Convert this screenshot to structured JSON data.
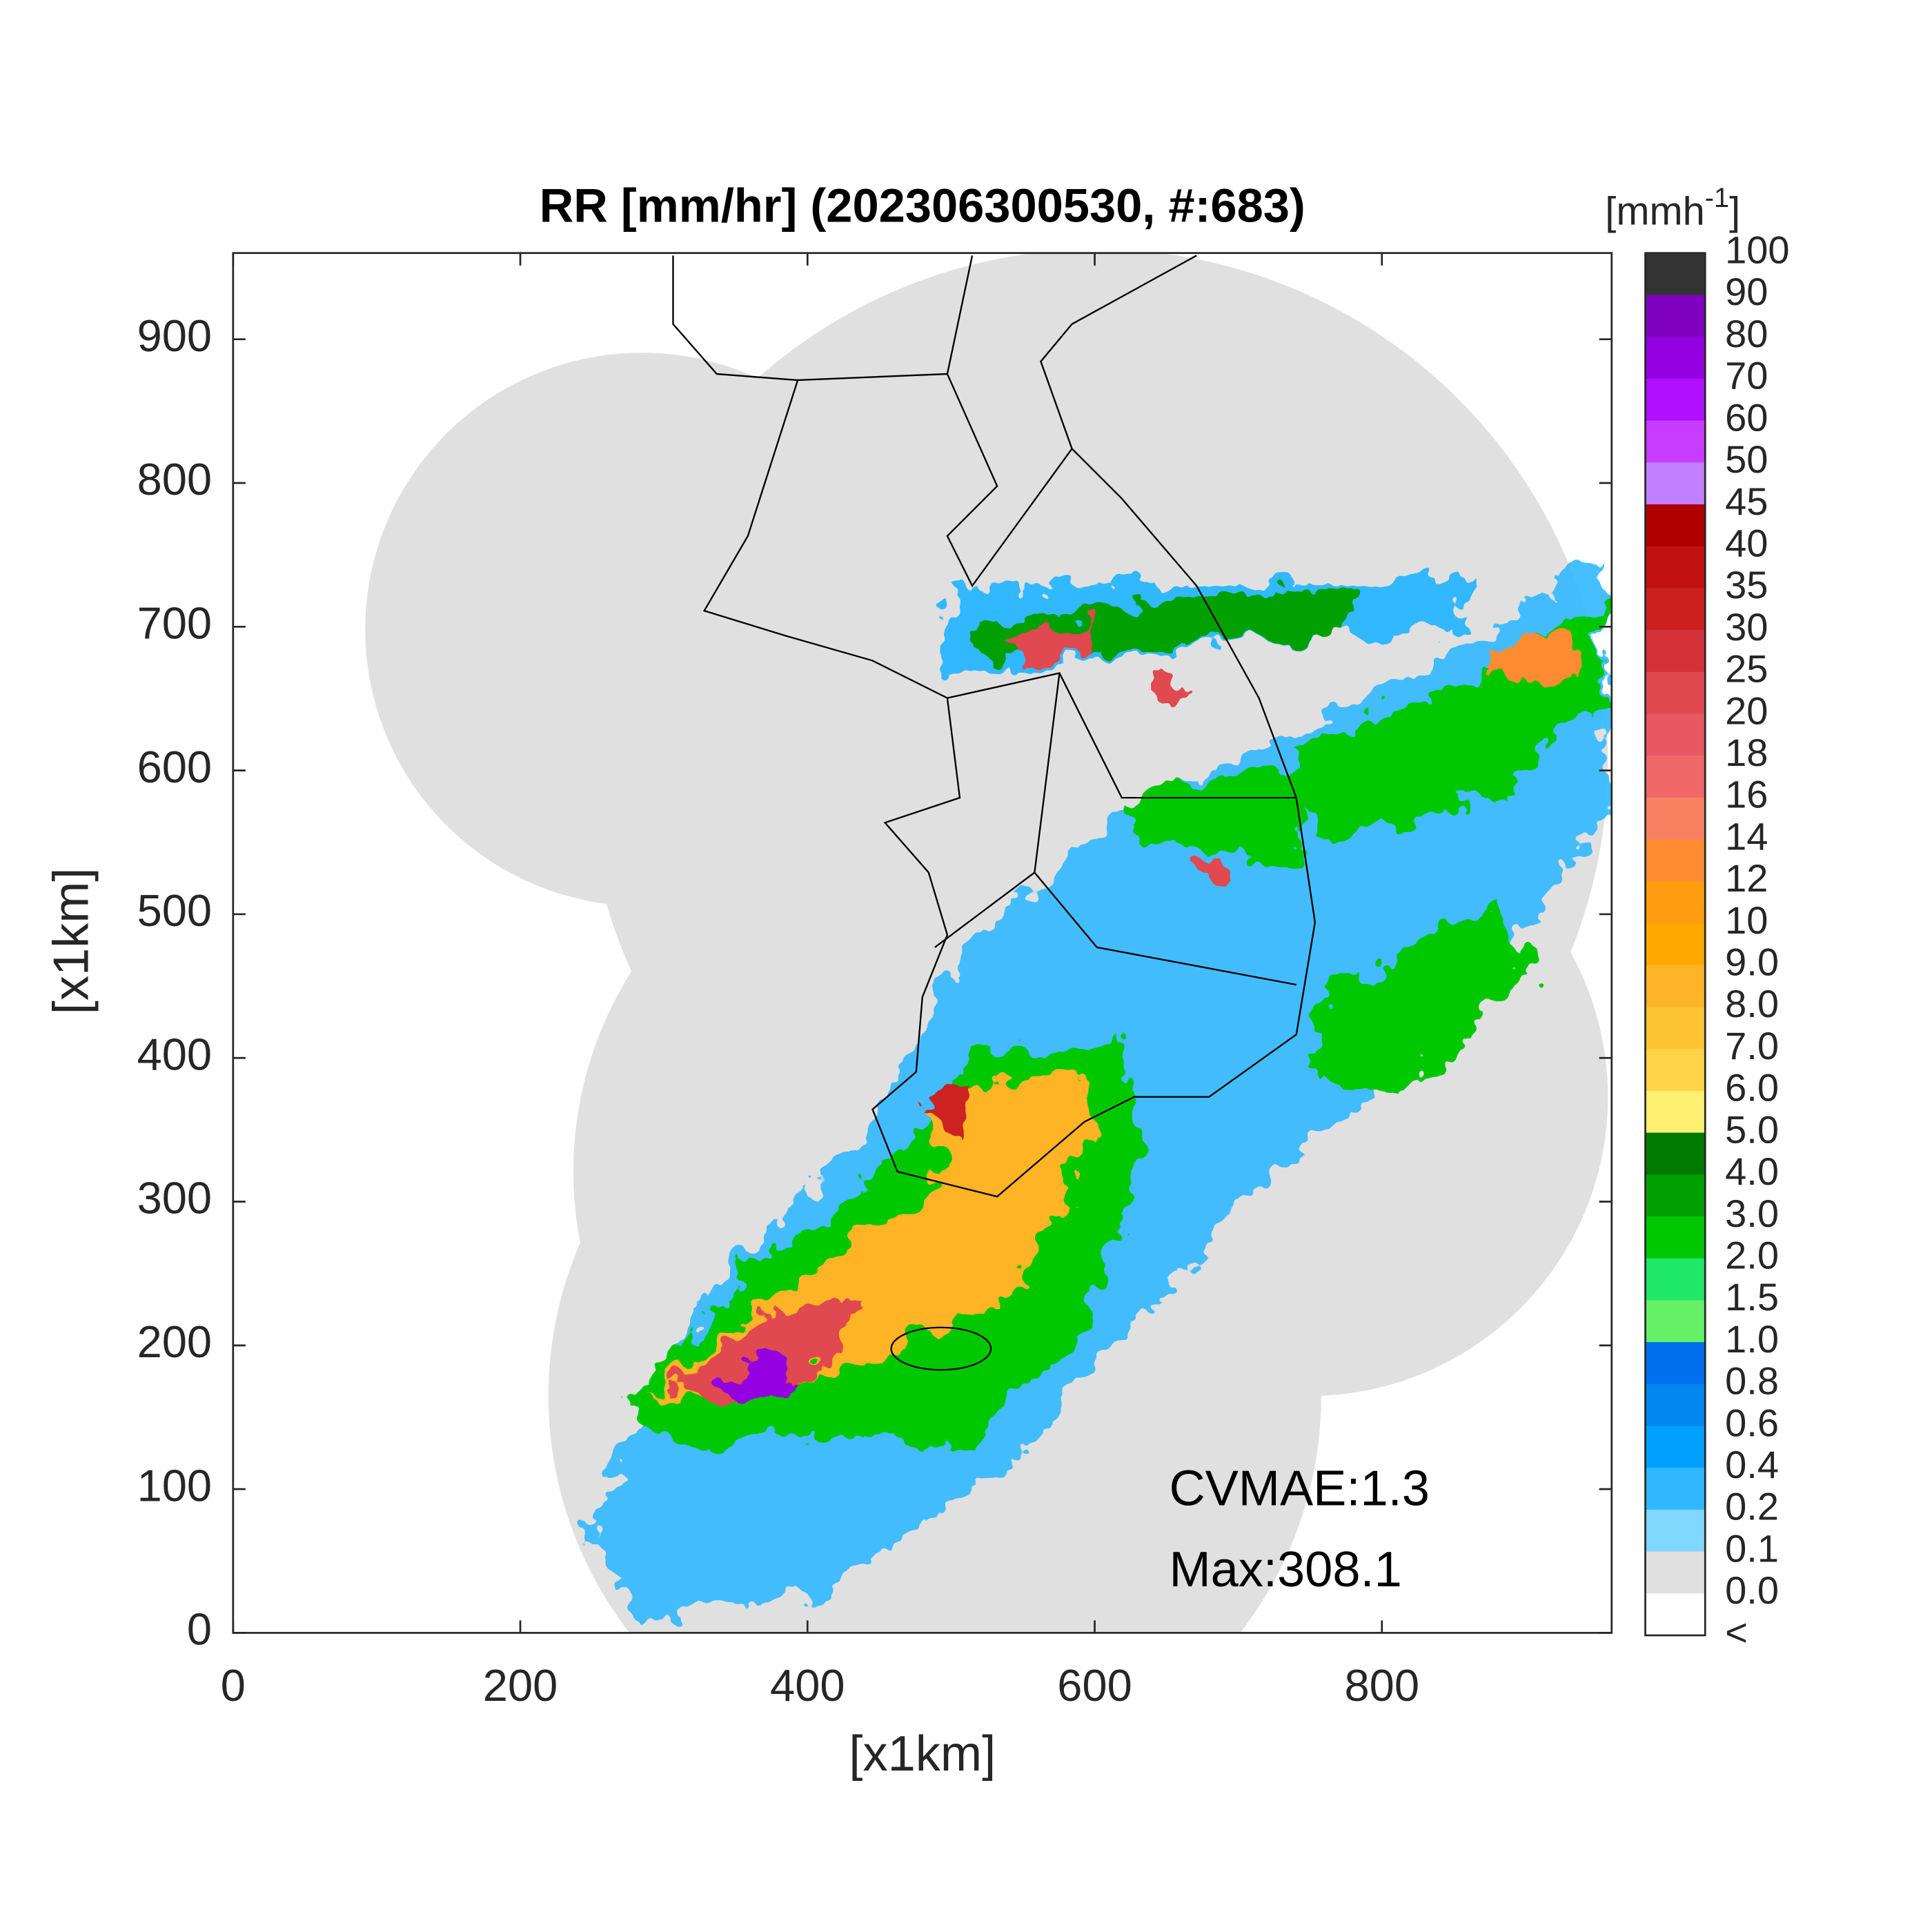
{
  "title": "RR [mm/hr] (202306300530, #:683)",
  "x_axis": {
    "label": "[x1km]",
    "lim": [
      0,
      960
    ],
    "ticks": [
      0,
      200,
      400,
      600,
      800
    ]
  },
  "y_axis": {
    "label": "[x1km]",
    "lim": [
      0,
      960
    ],
    "ticks": [
      0,
      100,
      200,
      300,
      400,
      500,
      600,
      700,
      800,
      900
    ]
  },
  "colorbar": {
    "unit": {
      "base": "[mmh",
      "exponent": "-1",
      "close": "]"
    },
    "labels": [
      "100",
      "90",
      "80",
      "70",
      "60",
      "50",
      "45",
      "40",
      "35",
      "30",
      "25",
      "20",
      "18",
      "16",
      "14",
      "12",
      "10",
      "9.0",
      "8.0",
      "7.0",
      "6.0",
      "5.0",
      "4.0",
      "3.0",
      "2.0",
      "1.5",
      "1.0",
      "0.8",
      "0.6",
      "0.4",
      "0.2",
      "0.1",
      "0.0",
      "<"
    ],
    "colors": [
      "#333333",
      "#8000c0",
      "#9400e0",
      "#b010ff",
      "#c83cff",
      "#c080ff",
      "#b00000",
      "#c01010",
      "#cc2020",
      "#d43038",
      "#e04850",
      "#e85860",
      "#f06868",
      "#f88060",
      "#ff8c30",
      "#ff9c10",
      "#ffa800",
      "#ffb428",
      "#ffc434",
      "#ffd448",
      "#fff070",
      "#007a00",
      "#00a000",
      "#00c800",
      "#20e868",
      "#66f066",
      "#0070f0",
      "#0088f0",
      "#00a0ff",
      "#30b8ff",
      "#80d8ff",
      "#e0e0e0",
      "#ffffff"
    ]
  },
  "annotations": [
    "CVMAE:1.3",
    "Max:308.1"
  ]
}
